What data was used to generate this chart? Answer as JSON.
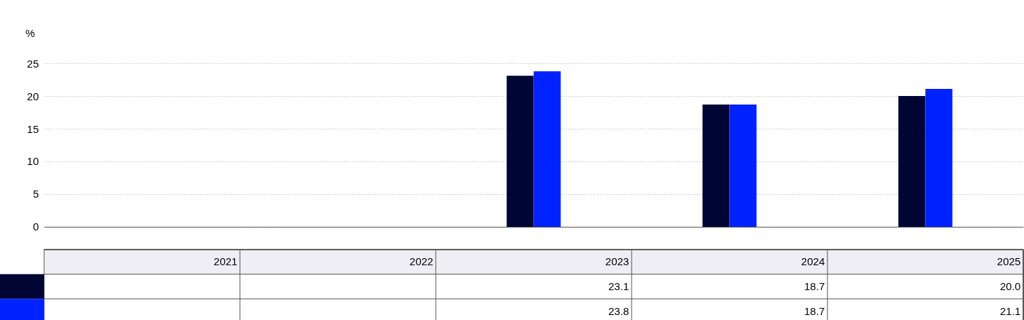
{
  "chart_data": {
    "type": "bar",
    "ylabel": "%",
    "categories": [
      "2021",
      "2022",
      "2023",
      "2024",
      "2025"
    ],
    "series": [
      {
        "color": "#000633",
        "values": [
          null,
          null,
          23.1,
          18.7,
          20.0
        ],
        "value_labels": [
          null,
          null,
          "23.1",
          "18.7",
          "20.0"
        ]
      },
      {
        "color": "#0022ff",
        "values": [
          null,
          null,
          23.8,
          18.7,
          21.1
        ],
        "value_labels": [
          null,
          null,
          "23.8",
          "18.7",
          "21.1"
        ]
      }
    ],
    "ylim": [
      0,
      25
    ],
    "yticks": [
      0,
      5,
      10,
      15,
      20,
      25
    ],
    "grid": "y"
  }
}
